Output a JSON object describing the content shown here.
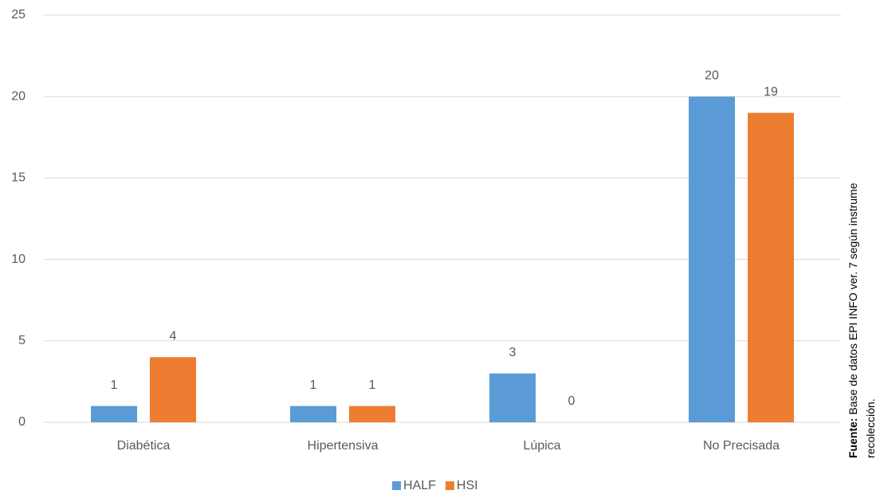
{
  "chart_data": {
    "type": "bar",
    "categories": [
      "Diabética",
      "Hipertensiva",
      "Lúpica",
      "No Precisada"
    ],
    "series": [
      {
        "name": "HALF",
        "color": "#5b9bd5",
        "values": [
          1,
          1,
          3,
          20
        ]
      },
      {
        "name": "HSI",
        "color": "#ed7d31",
        "values": [
          4,
          1,
          0,
          19
        ]
      }
    ],
    "ylim": [
      0,
      25
    ],
    "yticks": [
      0,
      5,
      10,
      15,
      20,
      25
    ],
    "grid": true,
    "legend": "bottom",
    "source_label": "Fuente:",
    "source_lines": [
      "Base de datos EPI INFO ver. 7 según instrume",
      "recolección."
    ]
  }
}
